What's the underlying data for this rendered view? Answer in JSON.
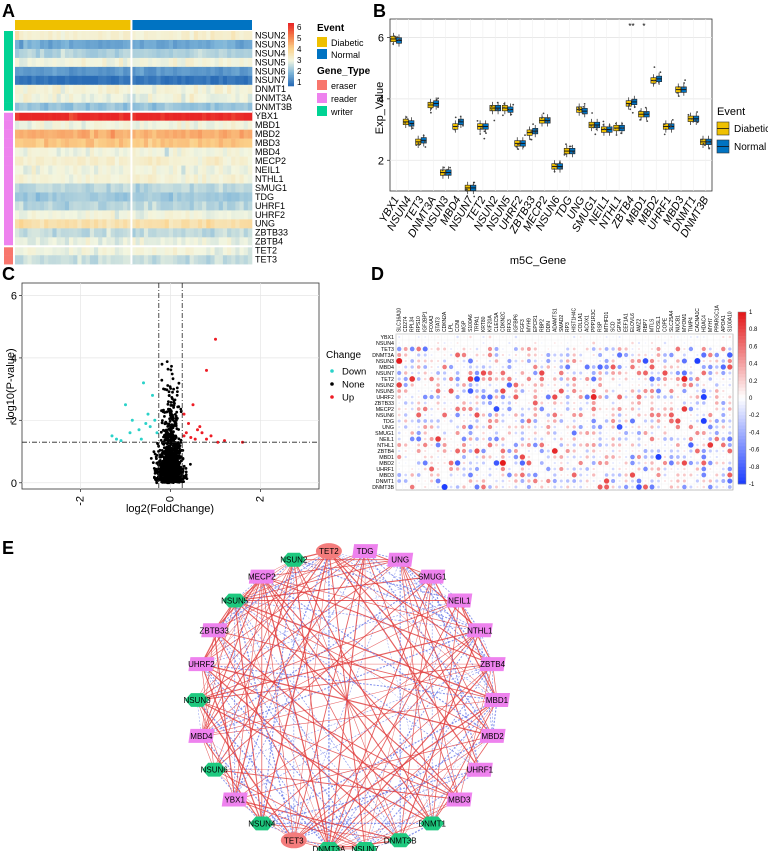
{
  "panel_labels": {
    "a": "A",
    "b": "B",
    "c": "C",
    "d": "D",
    "e": "E"
  },
  "colors": {
    "diabetic": "#EFC000",
    "normal": "#0073C2",
    "eraser": "#F8766D",
    "reader": "#EE82EE",
    "writer": "#00D394",
    "down": "#2AD2C9",
    "none": "#000000",
    "up": "#EE1C25",
    "corr_pos": "#E41A1C",
    "corr_neg": "#1F3FFF",
    "node_writer": "#1EC97F",
    "node_reader": "#EE82EE",
    "node_eraser": "#F47C7C",
    "edge_pos": "#E03A3A",
    "edge_neg": "#6A7BE8"
  },
  "chart_data": [
    {
      "id": "A",
      "type": "heatmap",
      "title": "",
      "rows": [
        "NSUN2",
        "NSUN3",
        "NSUN4",
        "NSUN5",
        "NSUN6",
        "NSUN7",
        "DNMT1",
        "DNMT3A",
        "DNMT3B",
        "YBX1",
        "MBD1",
        "MBD2",
        "MBD3",
        "MBD4",
        "MECP2",
        "NEIL1",
        "NTHL1",
        "SMUG1",
        "TDG",
        "UHRF1",
        "UHRF2",
        "UNG",
        "ZBTB33",
        "ZBTB4",
        "TET2",
        "TET3"
      ],
      "row_groups": [
        "writer",
        "writer",
        "writer",
        "writer",
        "writer",
        "writer",
        "writer",
        "writer",
        "writer",
        "reader",
        "reader",
        "reader",
        "reader",
        "reader",
        "reader",
        "reader",
        "reader",
        "reader",
        "reader",
        "reader",
        "reader",
        "reader",
        "reader",
        "reader",
        "eraser",
        "eraser"
      ],
      "row_levels": [
        3.2,
        1.8,
        2.4,
        3.0,
        1.6,
        1.1,
        3.1,
        3.0,
        2.2,
        6.0,
        3.0,
        4.4,
        4.1,
        3.0,
        3.2,
        3.0,
        3.1,
        2.5,
        2.3,
        2.5,
        3.0,
        3.6,
        2.6,
        2.9,
        3.0,
        2.6
      ],
      "column_groups": [
        {
          "name": "Diabetic",
          "count": 28
        },
        {
          "name": "Normal",
          "count": 29
        }
      ],
      "scale": {
        "min": 1,
        "max": 6,
        "ticks": [
          "6",
          "5",
          "4",
          "3",
          "2",
          "1"
        ]
      },
      "legend_event_title": "Event",
      "legend_event_items": [
        "Diabetic",
        "Normal"
      ],
      "legend_gene_title": "Gene_Type",
      "legend_gene_items": [
        "eraser",
        "reader",
        "writer"
      ]
    },
    {
      "id": "B",
      "type": "box",
      "xlabel": "m5C_Gene",
      "ylabel": "Exp_Value",
      "ylim": [
        1.0,
        6.6
      ],
      "yticks": [
        2,
        4,
        6
      ],
      "categories": [
        "YBX1",
        "NSUN4",
        "TET3",
        "DNMT3A",
        "NSUN3",
        "MBD4",
        "NSUN7",
        "TET2",
        "NSUN2",
        "NSUN5",
        "UHRF2",
        "ZBTB33",
        "MECP2",
        "NSUN6",
        "TDG",
        "UNG",
        "SMUG1",
        "NEIL1",
        "NTHL1",
        "ZBTB4",
        "MBD1",
        "MBD2",
        "UHRF1",
        "MBD3",
        "DNMT1",
        "DNMT3B"
      ],
      "diabetic_medians": [
        5.95,
        3.25,
        2.6,
        3.8,
        1.6,
        3.1,
        1.1,
        3.1,
        3.7,
        3.7,
        2.55,
        2.9,
        3.3,
        1.8,
        2.3,
        3.65,
        3.15,
        3.0,
        3.05,
        3.85,
        3.5,
        4.6,
        3.1,
        4.3,
        3.35,
        2.6
      ],
      "normal_medians": [
        5.9,
        3.2,
        2.65,
        3.85,
        1.6,
        3.25,
        1.1,
        3.1,
        3.7,
        3.65,
        2.55,
        2.95,
        3.3,
        1.8,
        2.3,
        3.6,
        3.15,
        3.0,
        3.05,
        3.9,
        3.5,
        4.65,
        3.1,
        4.3,
        3.35,
        2.6
      ],
      "significance": [
        {
          "category": "ZBTB4",
          "label": "**"
        },
        {
          "category": "MBD1",
          "label": "*"
        }
      ],
      "legend_title": "Event",
      "legend_items": [
        "Diabetic",
        "Normal"
      ]
    },
    {
      "id": "C",
      "type": "scatter",
      "xlabel": "log2(FoldChange)",
      "ylabel": "-log10(P-value)",
      "xlim": [
        -3.3,
        3.3
      ],
      "ylim": [
        -0.2,
        6.4
      ],
      "xticks": [
        -2,
        0,
        2
      ],
      "yticks": [
        0,
        2,
        4,
        6
      ],
      "vlines": [
        -0.26,
        0.26
      ],
      "hline": 1.3,
      "up_points": [
        [
          1.0,
          4.6
        ],
        [
          0.8,
          3.6
        ],
        [
          0.5,
          2.5
        ],
        [
          0.7,
          1.6
        ],
        [
          0.9,
          1.5
        ],
        [
          1.6,
          1.3
        ],
        [
          1.2,
          1.35
        ],
        [
          0.6,
          1.7
        ],
        [
          0.4,
          1.9
        ],
        [
          0.3,
          2.2
        ],
        [
          0.55,
          1.4
        ],
        [
          0.45,
          1.45
        ],
        [
          0.35,
          1.6
        ],
        [
          0.8,
          1.4
        ],
        [
          1.05,
          1.3
        ],
        [
          0.65,
          1.8
        ],
        [
          0.3,
          1.5
        ]
      ],
      "down_points": [
        [
          -1.0,
          2.5
        ],
        [
          -0.85,
          2.0
        ],
        [
          -0.6,
          3.2
        ],
        [
          -0.4,
          2.8
        ],
        [
          -1.3,
          1.5
        ],
        [
          -1.2,
          1.4
        ],
        [
          -0.7,
          1.7
        ],
        [
          -0.5,
          2.2
        ],
        [
          -0.35,
          2.0
        ],
        [
          -0.9,
          1.6
        ],
        [
          -0.65,
          1.4
        ],
        [
          -0.45,
          1.8
        ],
        [
          -0.3,
          1.6
        ],
        [
          -0.55,
          1.9
        ],
        [
          -1.1,
          1.35
        ]
      ],
      "none_count": 1100,
      "legend_title": "Change",
      "legend_items": [
        "Down",
        "None",
        "Up"
      ]
    },
    {
      "id": "D",
      "type": "correlation-dotplot",
      "rows": [
        "YBX1",
        "NSUN4",
        "TET3",
        "DNMT3A",
        "NSUN3",
        "MBD4",
        "NSUN7",
        "TET2",
        "NSUN2",
        "NSUN5",
        "UHRF2",
        "ZBTB33",
        "MECP2",
        "NSUN6",
        "TDG",
        "UNG",
        "SMUG1",
        "NEIL1",
        "NTHL1",
        "ZBTB4",
        "MBD1",
        "MBD2",
        "UHRF1",
        "MBD3",
        "DNMT1",
        "DNMT3B"
      ],
      "columns": [
        "SLC16A10",
        "CD274",
        "RPL34",
        "RPS10",
        "IGF2BP1",
        "FOXA3",
        "STAT3",
        "CDKN2A",
        "LPL",
        "CCNI",
        "MGP",
        "S100A6",
        "TRPA1",
        "KRT80",
        "KIF20A",
        "CLEC5A",
        "CDKN2C",
        "RFX3",
        "IGFBP6",
        "FGF3",
        "MYH9",
        "EPCR1",
        "RBP2",
        "DDN",
        "ADAMTS1",
        "SMAD2",
        "RP3",
        "HIST1H4C",
        "COL1A1",
        "ACOX1",
        "PPP1R3C",
        "RSP",
        "MTHFD1",
        "SCD",
        "GPX4",
        "EEF1A1",
        "ELOVL6",
        "AMZ2",
        "RBP7",
        "MTLS",
        "FOSL1",
        "COPE",
        "SLC25A4",
        "NUCB1",
        "MYOM1",
        "TIMP4",
        "CACNA1C",
        "HDAC4",
        "MYH7",
        "PPARGC1A",
        "APOA1",
        "S100A10"
      ],
      "scale": {
        "min": -1,
        "max": 1,
        "ticks": [
          "1",
          "0.8",
          "0.6",
          "0.4",
          "0.2",
          "0",
          "-0.2",
          "-0.4",
          "-0.6",
          "-0.8",
          "-1"
        ]
      }
    },
    {
      "id": "E",
      "type": "network",
      "nodes": [
        {
          "label": "TDG",
          "group": "reader"
        },
        {
          "label": "UNG",
          "group": "reader"
        },
        {
          "label": "SMUG1",
          "group": "reader"
        },
        {
          "label": "NEIL1",
          "group": "reader"
        },
        {
          "label": "NTHL1",
          "group": "reader"
        },
        {
          "label": "ZBTB4",
          "group": "reader"
        },
        {
          "label": "MBD1",
          "group": "reader"
        },
        {
          "label": "MBD2",
          "group": "reader"
        },
        {
          "label": "UHRF1",
          "group": "reader"
        },
        {
          "label": "MBD3",
          "group": "reader"
        },
        {
          "label": "DNMT1",
          "group": "writer"
        },
        {
          "label": "DNMT3B",
          "group": "writer"
        },
        {
          "label": "NSUN7",
          "group": "writer"
        },
        {
          "label": "DNMT3A",
          "group": "writer"
        },
        {
          "label": "TET3",
          "group": "eraser"
        },
        {
          "label": "NSUN4",
          "group": "writer"
        },
        {
          "label": "YBX1",
          "group": "reader"
        },
        {
          "label": "NSUN6",
          "group": "writer"
        },
        {
          "label": "MBD4",
          "group": "reader"
        },
        {
          "label": "NSUN3",
          "group": "writer"
        },
        {
          "label": "UHRF2",
          "group": "reader"
        },
        {
          "label": "ZBTB33",
          "group": "reader"
        },
        {
          "label": "NSUN5",
          "group": "writer"
        },
        {
          "label": "MECP2",
          "group": "reader"
        },
        {
          "label": "NSUN2",
          "group": "writer"
        },
        {
          "label": "TET2",
          "group": "eraser"
        }
      ]
    }
  ]
}
